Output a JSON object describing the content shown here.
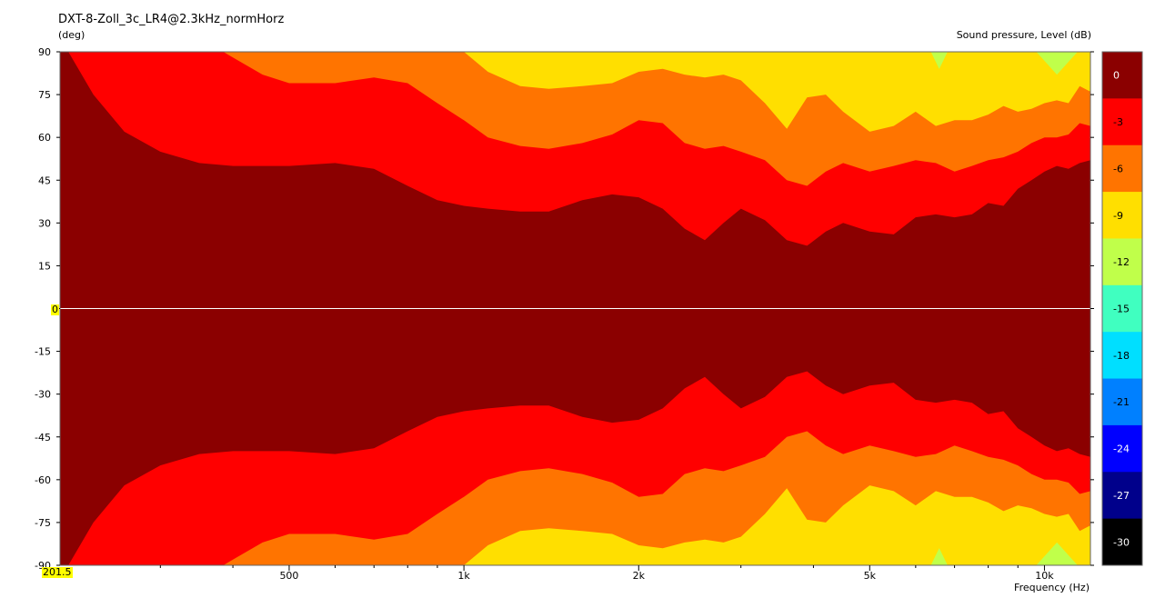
{
  "chart_data": {
    "type": "heatmap",
    "title": "DXT-8-Zoll_3c_LR4@2.3kHz_normHorz",
    "ylabel": "(deg)",
    "xlabel": "Frequency  (Hz)",
    "colorbar_label": "Sound pressure, Level  (dB)",
    "x_scale": "log",
    "xlim": [
      201.5,
      12000
    ],
    "ylim": [
      -90,
      90
    ],
    "x_ticks": [
      {
        "value": 500,
        "label": "500"
      },
      {
        "value": 1000,
        "label": "1k"
      },
      {
        "value": 2000,
        "label": "2k"
      },
      {
        "value": 5000,
        "label": "5k"
      },
      {
        "value": 10000,
        "label": "10k"
      }
    ],
    "y_ticks": [
      90,
      75,
      60,
      45,
      30,
      15,
      0,
      -15,
      -30,
      -45,
      -60,
      -75,
      -90
    ],
    "cursor_readouts": {
      "x": "201.5",
      "y": "0"
    },
    "levels": [
      {
        "label": "0",
        "color": "#8b0000"
      },
      {
        "label": "-3",
        "color": "#ff0000"
      },
      {
        "label": "-6",
        "color": "#ff7400"
      },
      {
        "label": "-9",
        "color": "#ffdf00"
      },
      {
        "label": "-12",
        "color": "#c0ff4a"
      },
      {
        "label": "-15",
        "color": "#40ffc0"
      },
      {
        "label": "-18",
        "color": "#00dfff"
      },
      {
        "label": "-21",
        "color": "#0080ff"
      },
      {
        "label": "-24",
        "color": "#0000ff"
      },
      {
        "label": "-27",
        "color": "#00008b"
      },
      {
        "label": "-30",
        "color": "#000000"
      }
    ],
    "contours": {
      "freq": [
        201.5,
        230,
        260,
        300,
        350,
        400,
        450,
        500,
        600,
        700,
        800,
        900,
        1000,
        1100,
        1250,
        1400,
        1600,
        1800,
        2000,
        2200,
        2400,
        2600,
        2800,
        3000,
        3300,
        3600,
        3900,
        4200,
        4500,
        5000,
        5500,
        6000,
        6500,
        7000,
        7500,
        8000,
        8500,
        9000,
        9500,
        10000,
        10500,
        11000,
        11500,
        12000
      ],
      "minus3": [
        95,
        75,
        62,
        55,
        51,
        50,
        50,
        50,
        51,
        49,
        43,
        38,
        36,
        35,
        34,
        34,
        38,
        40,
        39,
        35,
        28,
        24,
        30,
        35,
        31,
        24,
        22,
        27,
        30,
        27,
        26,
        32,
        33,
        32,
        33,
        37,
        36,
        42,
        45,
        48,
        50,
        49,
        51,
        52
      ],
      "minus6": [
        95,
        95,
        95,
        95,
        95,
        88,
        82,
        79,
        79,
        81,
        79,
        72,
        66,
        60,
        57,
        56,
        58,
        61,
        66,
        65,
        58,
        56,
        57,
        55,
        52,
        45,
        43,
        48,
        51,
        48,
        50,
        52,
        51,
        48,
        50,
        52,
        53,
        55,
        58,
        60,
        60,
        61,
        65,
        64
      ],
      "minus9": [
        95,
        95,
        95,
        95,
        95,
        95,
        95,
        95,
        95,
        95,
        95,
        95,
        90,
        83,
        78,
        77,
        78,
        79,
        83,
        84,
        82,
        81,
        82,
        80,
        72,
        63,
        74,
        75,
        69,
        62,
        64,
        69,
        64,
        66,
        66,
        68,
        71,
        69,
        70,
        72,
        73,
        72,
        78,
        76
      ],
      "minus12_pockets": [
        {
          "f0": 6200,
          "f1": 7000,
          "top": 84
        },
        {
          "f0": 9200,
          "f1": 12000,
          "top": 82
        }
      ]
    }
  }
}
